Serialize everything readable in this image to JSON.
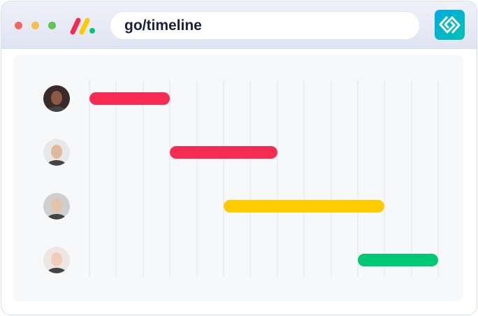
{
  "browser": {
    "url": "go/timeline",
    "window_controls": [
      {
        "name": "close",
        "color": "#ee6a5f"
      },
      {
        "name": "minimize",
        "color": "#f6be4f"
      },
      {
        "name": "maximize",
        "color": "#61c554"
      }
    ],
    "logo_icon": "monday-logo",
    "extension_icon": "linked-diamonds-icon"
  },
  "timeline": {
    "columns": 13,
    "rows": [
      {
        "avatar": "person-1-avatar",
        "start": 0,
        "end": 3,
        "color": "#f62b54",
        "avatar_bg": "#3a2a2a",
        "skin": "#8a5a45"
      },
      {
        "avatar": "person-2-avatar",
        "start": 3,
        "end": 7,
        "color": "#f62b54",
        "avatar_bg": "#e8e8e8",
        "skin": "#e0b89c"
      },
      {
        "avatar": "person-3-avatar",
        "start": 5,
        "end": 11,
        "color": "#ffcb00",
        "avatar_bg": "#cfcfcf",
        "skin": "#e4c3a8"
      },
      {
        "avatar": "person-4-avatar",
        "start": 10,
        "end": 13,
        "color": "#00c875",
        "avatar_bg": "#ede6e2",
        "skin": "#f0cdb8"
      }
    ]
  }
}
